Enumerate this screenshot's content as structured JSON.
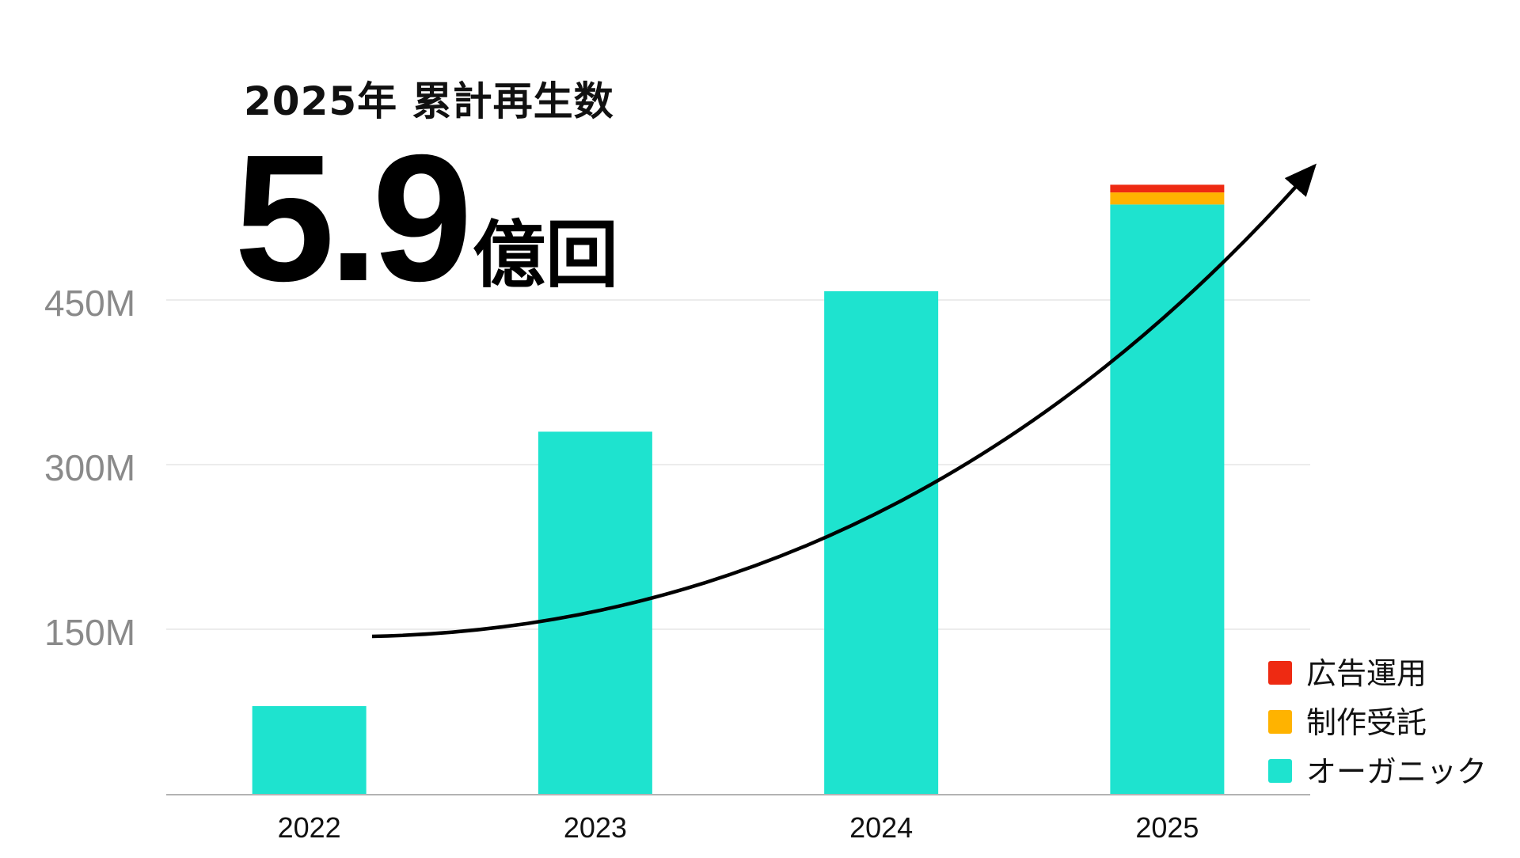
{
  "headline": {
    "title": "2025年 累計再生数",
    "big_number": "5.9",
    "big_unit": "億回"
  },
  "chart_data": {
    "type": "bar",
    "stacked": true,
    "categories": [
      "2022",
      "2023",
      "2024",
      "2025"
    ],
    "series": [
      {
        "name": "オーガニック",
        "color": "#1ee3cf",
        "values": [
          80,
          330,
          458,
          537
        ]
      },
      {
        "name": "制作受託",
        "color": "#ffb300",
        "values": [
          0,
          0,
          0,
          11
        ]
      },
      {
        "name": "広告運用",
        "color": "#ee2a12",
        "values": [
          0,
          0,
          0,
          7
        ]
      }
    ],
    "y_ticks": [
      {
        "value": 150,
        "label": "150M"
      },
      {
        "value": 300,
        "label": "300M"
      },
      {
        "value": 450,
        "label": "450M"
      }
    ],
    "ylim": [
      0,
      600
    ],
    "grid": true,
    "legend_placement": "bottom-right",
    "legend_order": [
      "広告運用",
      "制作受託",
      "オーガニック"
    ],
    "trend_arrow": true,
    "title": "2025年 累計再生数",
    "xlabel": "",
    "ylabel": ""
  }
}
